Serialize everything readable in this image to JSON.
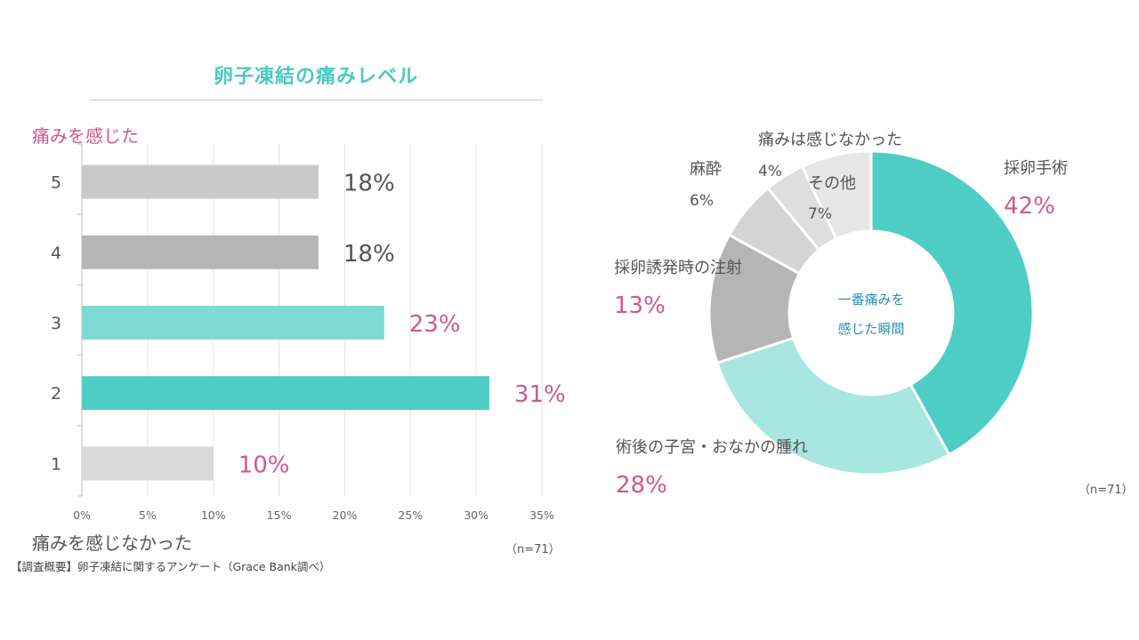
{
  "bar_chart": {
    "title": "卵子凍結の痛みレベル",
    "y_top_label": "痛みを感じた",
    "y_bottom_label": "痛みを感じなかった",
    "n_label": "（n=71）"
  },
  "donut_chart": {
    "center_line1": "一番痛みを",
    "center_line2": "感じた瞬間",
    "n_label": "（n=71）"
  },
  "survey_note": "【調査概要】卵子凍結に関するアンケート（Grace Bank調べ）",
  "colors": {
    "teal": "#4ecdc4",
    "teal_light": "#7edbd3",
    "teal_pale": "#a8e6e0",
    "gray_mid": "#b5b5b5",
    "gray_light": "#c9c9c9",
    "gray_pale": "#d9d9d9",
    "gray_faint": "#e6e6e6",
    "pink": "#cc5a8f",
    "center_blue": "#2e8fb0"
  },
  "chart_data": [
    {
      "type": "bar",
      "orientation": "horizontal",
      "categories": [
        "5",
        "4",
        "3",
        "2",
        "1"
      ],
      "values": [
        18,
        18,
        23,
        31,
        10
      ],
      "value_labels": [
        "18%",
        "18%",
        "23%",
        "31%",
        "10%"
      ],
      "bar_colors": [
        "#c9c9c9",
        "#b5b5b5",
        "#7edbd3",
        "#4ecdc4",
        "#d9d9d9"
      ],
      "label_colors": [
        "#555555",
        "#555555",
        "#cc5a8f",
        "#cc5a8f",
        "#cc5a8f"
      ],
      "xlim": [
        0,
        35
      ],
      "xticks": [
        0,
        5,
        10,
        15,
        20,
        25,
        30,
        35
      ],
      "xtick_labels": [
        "0%",
        "5%",
        "10%",
        "15%",
        "20%",
        "25%",
        "30%",
        "35%"
      ],
      "grid": true
    },
    {
      "type": "pie",
      "donut": true,
      "slices": [
        {
          "label": "採卵手術",
          "value": 42,
          "pct": "42%",
          "color": "#4ecdc4",
          "emphasis": true
        },
        {
          "label": "術後の子宮・おなかの腫れ",
          "value": 28,
          "pct": "28%",
          "color": "#a8e6e0",
          "emphasis": true
        },
        {
          "label": "採卵誘発時の注射",
          "value": 13,
          "pct": "13%",
          "color": "#b5b5b5",
          "emphasis": true
        },
        {
          "label": "麻酔",
          "value": 6,
          "pct": "6%",
          "color": "#d4d4d4",
          "emphasis": false
        },
        {
          "label": "痛みは感じなかった",
          "value": 4,
          "pct": "4%",
          "color": "#dedede",
          "emphasis": false
        },
        {
          "label": "その他",
          "value": 7,
          "pct": "7%",
          "color": "#e6e6e6",
          "emphasis": false
        }
      ]
    }
  ]
}
